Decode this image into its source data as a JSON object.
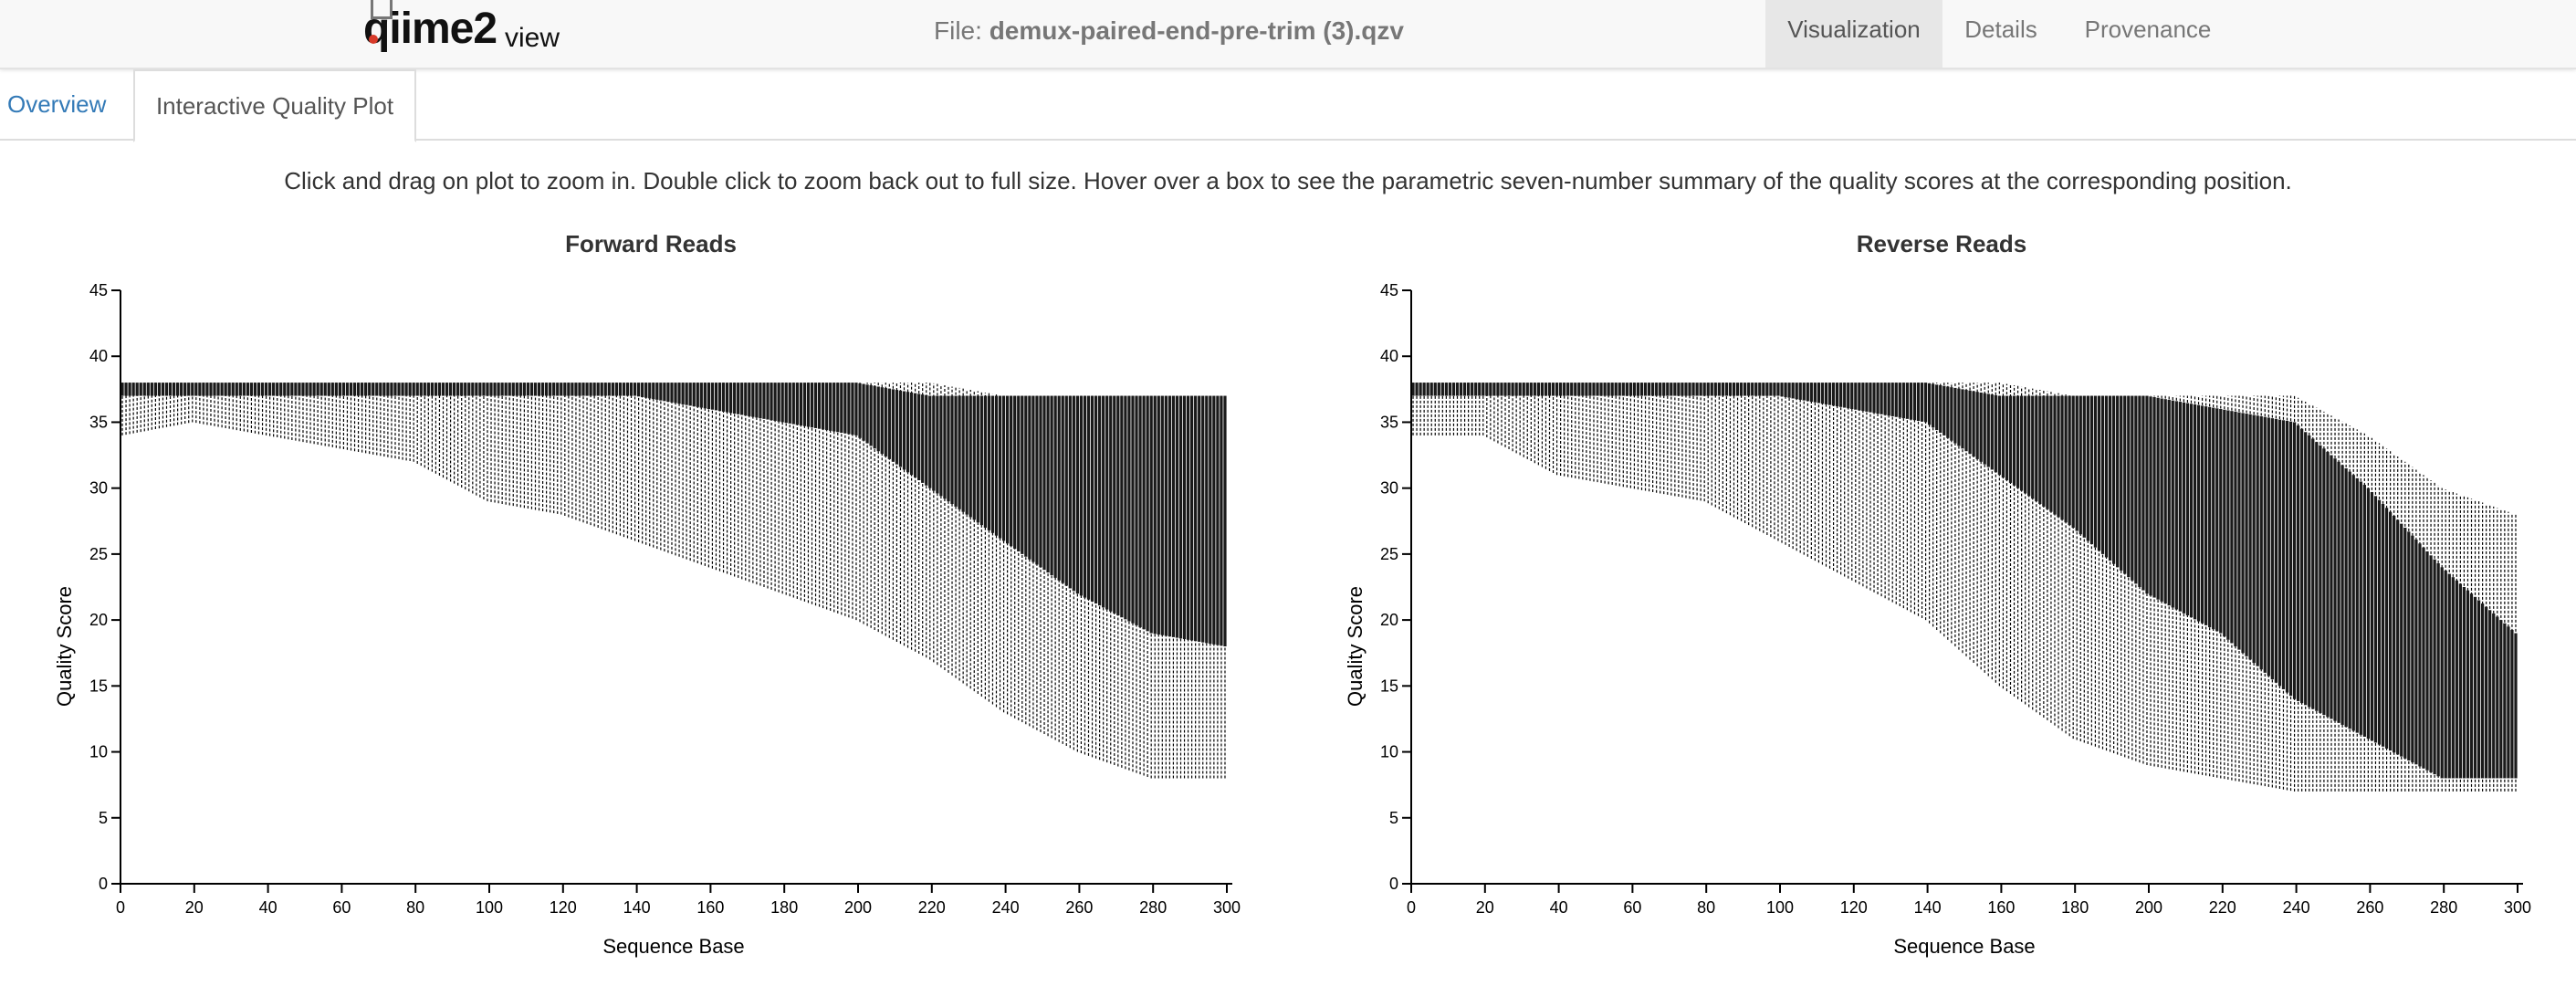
{
  "navbar": {
    "logo_text": "qiime2",
    "logo_suffix": "view",
    "file_label": "File:",
    "file_name": "demux-paired-end-pre-trim (3).qzv",
    "tabs": [
      {
        "label": "Visualization",
        "active": true
      },
      {
        "label": "Details",
        "active": false
      },
      {
        "label": "Provenance",
        "active": false
      }
    ]
  },
  "subtabs": [
    {
      "label": "Overview",
      "active": false
    },
    {
      "label": "Interactive Quality Plot",
      "active": true
    }
  ],
  "instructions": "Click and drag on plot to zoom in. Double click to zoom back out to full size. Hover over a box to see the parametric seven-number summary of the quality scores at the corresponding position.",
  "chart_data": [
    {
      "type": "box",
      "title": "Forward Reads",
      "xlabel": "Sequence Base",
      "ylabel": "Quality Score",
      "xlim": [
        0,
        300
      ],
      "ylim": [
        0,
        45
      ],
      "xticks": [
        0,
        20,
        40,
        60,
        80,
        100,
        120,
        140,
        160,
        180,
        200,
        220,
        240,
        260,
        280,
        300
      ],
      "yticks": [
        0,
        5,
        10,
        15,
        20,
        25,
        30,
        35,
        40,
        45
      ],
      "boxes": [
        {
          "base": 1,
          "whisker_low": 34,
          "q1": 37,
          "median": 38,
          "q3": 38,
          "whisker_high": 38
        },
        {
          "base": 20,
          "whisker_low": 35,
          "q1": 37,
          "median": 38,
          "q3": 38,
          "whisker_high": 38
        },
        {
          "base": 40,
          "whisker_low": 34,
          "q1": 37,
          "median": 38,
          "q3": 38,
          "whisker_high": 38
        },
        {
          "base": 60,
          "whisker_low": 33,
          "q1": 37,
          "median": 38,
          "q3": 38,
          "whisker_high": 38
        },
        {
          "base": 80,
          "whisker_low": 32,
          "q1": 37,
          "median": 38,
          "q3": 38,
          "whisker_high": 38
        },
        {
          "base": 100,
          "whisker_low": 29,
          "q1": 37,
          "median": 38,
          "q3": 38,
          "whisker_high": 38
        },
        {
          "base": 120,
          "whisker_low": 28,
          "q1": 37,
          "median": 38,
          "q3": 38,
          "whisker_high": 38
        },
        {
          "base": 140,
          "whisker_low": 26,
          "q1": 37,
          "median": 38,
          "q3": 38,
          "whisker_high": 38
        },
        {
          "base": 160,
          "whisker_low": 24,
          "q1": 36,
          "median": 38,
          "q3": 38,
          "whisker_high": 38
        },
        {
          "base": 180,
          "whisker_low": 22,
          "q1": 35,
          "median": 37,
          "q3": 38,
          "whisker_high": 38
        },
        {
          "base": 200,
          "whisker_low": 20,
          "q1": 34,
          "median": 37,
          "q3": 38,
          "whisker_high": 38
        },
        {
          "base": 220,
          "whisker_low": 17,
          "q1": 30,
          "median": 36,
          "q3": 37,
          "whisker_high": 38
        },
        {
          "base": 240,
          "whisker_low": 13,
          "q1": 26,
          "median": 33,
          "q3": 37,
          "whisker_high": 37
        },
        {
          "base": 260,
          "whisker_low": 10,
          "q1": 22,
          "median": 31,
          "q3": 37,
          "whisker_high": 37
        },
        {
          "base": 280,
          "whisker_low": 8,
          "q1": 19,
          "median": 30,
          "q3": 37,
          "whisker_high": 37
        },
        {
          "base": 300,
          "whisker_low": 8,
          "q1": 18,
          "median": 28,
          "q3": 37,
          "whisker_high": 37
        }
      ]
    },
    {
      "type": "box",
      "title": "Reverse Reads",
      "xlabel": "Sequence Base",
      "ylabel": "Quality Score",
      "xlim": [
        0,
        300
      ],
      "ylim": [
        0,
        45
      ],
      "xticks": [
        0,
        20,
        40,
        60,
        80,
        100,
        120,
        140,
        160,
        180,
        200,
        220,
        240,
        260,
        280,
        300
      ],
      "yticks": [
        0,
        5,
        10,
        15,
        20,
        25,
        30,
        35,
        40,
        45
      ],
      "boxes": [
        {
          "base": 1,
          "whisker_low": 34,
          "q1": 37,
          "median": 38,
          "q3": 38,
          "whisker_high": 38
        },
        {
          "base": 20,
          "whisker_low": 34,
          "q1": 37,
          "median": 38,
          "q3": 38,
          "whisker_high": 38
        },
        {
          "base": 40,
          "whisker_low": 31,
          "q1": 37,
          "median": 38,
          "q3": 38,
          "whisker_high": 38
        },
        {
          "base": 60,
          "whisker_low": 30,
          "q1": 37,
          "median": 38,
          "q3": 38,
          "whisker_high": 38
        },
        {
          "base": 80,
          "whisker_low": 29,
          "q1": 37,
          "median": 38,
          "q3": 38,
          "whisker_high": 38
        },
        {
          "base": 100,
          "whisker_low": 26,
          "q1": 37,
          "median": 38,
          "q3": 38,
          "whisker_high": 38
        },
        {
          "base": 120,
          "whisker_low": 23,
          "q1": 36,
          "median": 37,
          "q3": 38,
          "whisker_high": 38
        },
        {
          "base": 140,
          "whisker_low": 20,
          "q1": 35,
          "median": 37,
          "q3": 38,
          "whisker_high": 38
        },
        {
          "base": 160,
          "whisker_low": 15,
          "q1": 31,
          "median": 36,
          "q3": 37,
          "whisker_high": 38
        },
        {
          "base": 180,
          "whisker_low": 11,
          "q1": 27,
          "median": 34,
          "q3": 37,
          "whisker_high": 37
        },
        {
          "base": 200,
          "whisker_low": 9,
          "q1": 22,
          "median": 31,
          "q3": 37,
          "whisker_high": 37
        },
        {
          "base": 220,
          "whisker_low": 8,
          "q1": 19,
          "median": 29,
          "q3": 36,
          "whisker_high": 37
        },
        {
          "base": 240,
          "whisker_low": 7,
          "q1": 14,
          "median": 26,
          "q3": 35,
          "whisker_high": 37
        },
        {
          "base": 260,
          "whisker_low": 7,
          "q1": 11,
          "median": 22,
          "q3": 30,
          "whisker_high": 34
        },
        {
          "base": 280,
          "whisker_low": 7,
          "q1": 8,
          "median": 18,
          "q3": 24,
          "whisker_high": 30
        },
        {
          "base": 300,
          "whisker_low": 7,
          "q1": 8,
          "median": 14,
          "q3": 19,
          "whisker_high": 28
        }
      ]
    }
  ]
}
